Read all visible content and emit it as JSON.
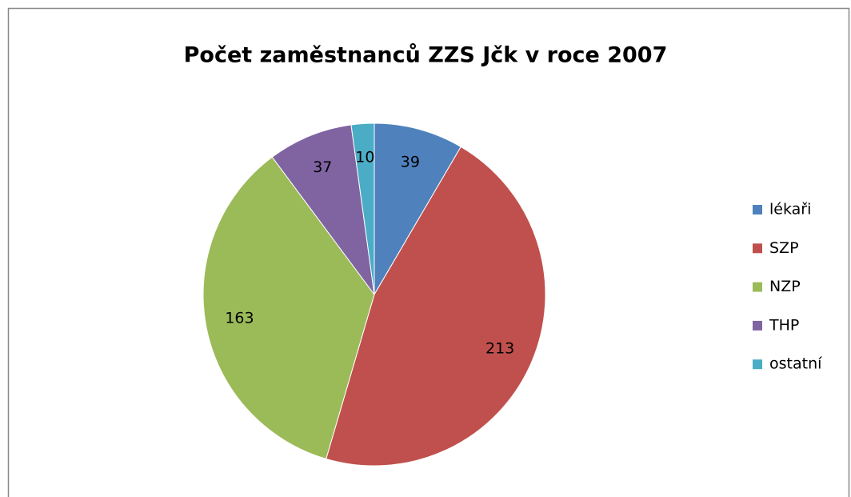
{
  "chart_data": {
    "type": "pie",
    "title": "Počet zaměstnanců ZZS Jčk v roce 2007",
    "categories": [
      "lékaři",
      "SZP",
      "NZP",
      "THP",
      "ostatní"
    ],
    "values": [
      39,
      213,
      163,
      37,
      10
    ],
    "colors": [
      "#4f81bd",
      "#c0504d",
      "#9bbb59",
      "#8064a2",
      "#4bacc6"
    ],
    "legend": "right"
  }
}
